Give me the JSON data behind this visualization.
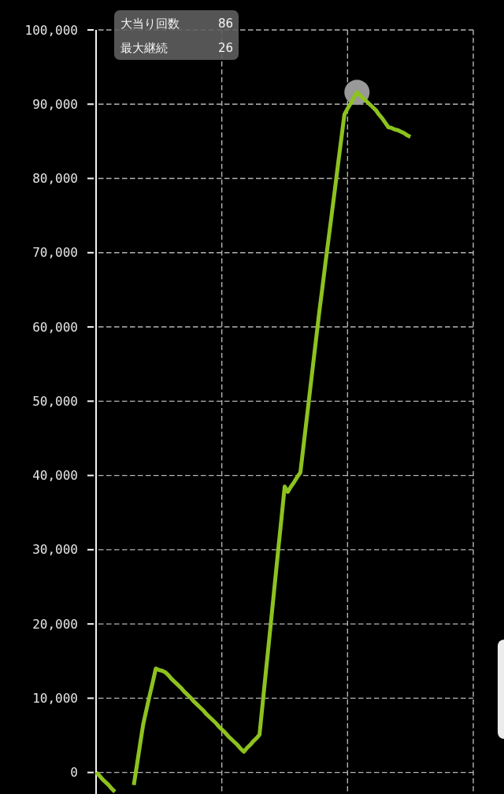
{
  "chart_data": {
    "type": "line",
    "categories": [
      null,
      null,
      null,
      null,
      null,
      null,
      null,
      null,
      null,
      null,
      null,
      null,
      null,
      null,
      null,
      null,
      null,
      null,
      null,
      null,
      null,
      null,
      null,
      null,
      null,
      null,
      null,
      null,
      null,
      null,
      null,
      null,
      null,
      null,
      null,
      null,
      null,
      null,
      null,
      null,
      null,
      null,
      null,
      null,
      null,
      null,
      null,
      null,
      null,
      null,
      null,
      null,
      null,
      null,
      null,
      null,
      null,
      null,
      null,
      null,
      null,
      null,
      null,
      null,
      null,
      null,
      null,
      null,
      null,
      null,
      null,
      null,
      null,
      null,
      null,
      null,
      null,
      null,
      null,
      null,
      null,
      null,
      null,
      null,
      null,
      null,
      null,
      null,
      null,
      null,
      null,
      null,
      null,
      null,
      null,
      null,
      null,
      null,
      null,
      null,
      null,
      null,
      null,
      null,
      null,
      null,
      null,
      null,
      null,
      null,
      null,
      null,
      null,
      null,
      null,
      null,
      null,
      null,
      null,
      null,
      null
    ],
    "series": [
      {
        "color": "#8dc21f",
        "values": [
          0,
          -400,
          -900,
          -1300,
          -1700,
          -2200,
          -2600,
          null,
          null,
          null,
          null,
          null,
          null,
          null,
          null,
          null,
          null,
          null,
          null,
          null,
          null,
          null,
          null,
          null,
          null,
          null,
          null,
          null,
          null,
          null,
          null,
          null,
          null,
          null,
          null,
          null,
          null,
          null,
          null,
          null,
          null,
          null,
          null,
          null,
          null,
          null,
          null,
          null,
          null,
          null,
          null,
          null,
          null,
          null,
          null,
          null,
          null,
          null,
          null,
          null,
          null,
          null,
          null,
          null,
          null,
          null,
          null,
          null,
          null,
          null,
          null,
          null,
          null,
          null,
          null,
          null,
          null,
          null,
          null,
          null,
          null,
          null,
          null,
          null,
          null,
          null,
          null,
          null,
          null,
          null,
          null,
          null,
          null,
          null,
          null,
          null,
          null,
          null,
          null,
          null,
          null,
          null,
          null,
          null,
          null,
          null,
          null,
          null,
          null,
          null,
          null,
          null,
          null,
          null,
          null,
          null,
          null,
          null,
          null,
          null,
          null
        ]
      },
      {
        "color": "#8dc21f",
        "values": [
          null,
          null,
          null,
          null,
          null,
          null,
          null,
          null,
          null,
          null,
          null,
          null,
          -1700,
          1000,
          3800,
          6500,
          8400,
          10300,
          12100,
          14000,
          13800,
          13700,
          13500,
          13100,
          12600,
          12200,
          11800,
          11400,
          10900,
          10500,
          10100,
          9600,
          9200,
          8800,
          8400,
          7900,
          7500,
          7100,
          6700,
          6200,
          5800,
          5400,
          4900,
          4500,
          4100,
          3700,
          3200,
          2800,
          3300,
          3700,
          4200,
          4600,
          5100,
          9300,
          13500,
          17600,
          21800,
          26000,
          30200,
          34300,
          38500,
          37800,
          38500,
          39100,
          39800,
          40400,
          44000,
          47600,
          51200,
          54800,
          58400,
          62000,
          65300,
          68700,
          72000,
          75300,
          78600,
          82000,
          85300,
          88600,
          89400,
          90100,
          90900,
          91600,
          91200,
          90800,
          90400,
          90000,
          89600,
          89200,
          88600,
          88100,
          87500,
          86900,
          86800,
          86600,
          86500,
          86300,
          86100,
          85800,
          85600,
          null,
          null,
          null,
          null,
          null,
          null,
          null,
          null,
          null,
          null,
          null,
          null,
          null,
          null,
          null,
          null,
          null,
          null,
          null,
          null
        ]
      },
      {
        "type": "scatter",
        "color": "#999999",
        "marker": "circle",
        "values": [
          null,
          null,
          null,
          null,
          null,
          null,
          null,
          null,
          null,
          null,
          null,
          null,
          null,
          null,
          null,
          null,
          null,
          null,
          null,
          null,
          null,
          null,
          null,
          null,
          null,
          null,
          null,
          null,
          null,
          null,
          null,
          null,
          null,
          null,
          null,
          null,
          null,
          null,
          null,
          null,
          null,
          null,
          null,
          null,
          null,
          null,
          null,
          null,
          null,
          null,
          null,
          null,
          null,
          null,
          null,
          null,
          null,
          null,
          null,
          null,
          null,
          null,
          null,
          null,
          null,
          null,
          null,
          null,
          null,
          null,
          null,
          null,
          null,
          null,
          null,
          null,
          null,
          null,
          null,
          null,
          null,
          null,
          null,
          91600,
          null,
          null,
          null,
          null,
          null,
          null,
          null,
          null,
          null,
          null,
          null,
          null,
          null,
          null,
          null,
          null,
          null,
          null,
          null,
          null,
          null,
          null,
          null,
          null,
          null,
          null,
          null,
          null,
          null,
          null,
          null,
          null,
          null,
          null,
          null,
          null,
          null
        ]
      }
    ],
    "ylim": [
      -2900,
      100000
    ],
    "yticks": [
      0,
      {
        "value": 10000,
        "label": "10,000"
      },
      {
        "value": 20000,
        "label": "20,000"
      },
      {
        "value": 30000,
        "label": "30,000"
      },
      {
        "value": 40000,
        "label": "40,000"
      },
      {
        "value": 50000,
        "label": "50,000"
      },
      {
        "value": 60000,
        "label": "60,000"
      },
      {
        "value": 70000,
        "label": "70,000"
      },
      {
        "value": 80000,
        "label": "80,000"
      },
      {
        "value": 90000,
        "label": "90,000"
      },
      {
        "value": 100000,
        "label": "100,000"
      }
    ],
    "grid": true,
    "tick_labels": "y",
    "annotations": [
      "大当り回数",
      "86",
      "最大継続",
      "26"
    ]
  }
}
